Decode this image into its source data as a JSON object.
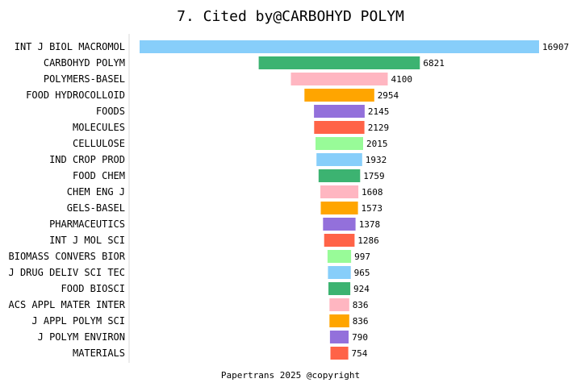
{
  "chart_data": {
    "type": "bar",
    "orientation": "horizontal-funnel",
    "title": "7. Cited by@CARBOHYD POLYM",
    "categories": [
      "INT J BIOL MACROMOL",
      "CARBOHYD POLYM",
      "POLYMERS-BASEL",
      "FOOD HYDROCOLLOID",
      "FOODS",
      "MOLECULES",
      "CELLULOSE",
      "IND CROP PROD",
      "FOOD CHEM",
      "CHEM ENG J",
      "GELS-BASEL",
      "PHARMACEUTICS",
      "INT J MOL SCI",
      "BIOMASS CONVERS BIOR",
      "J DRUG DELIV SCI TEC",
      "FOOD BIOSCI",
      "ACS APPL MATER INTER",
      "J APPL POLYM SCI",
      "J POLYM ENVIRON",
      "MATERIALS"
    ],
    "values": [
      16907,
      6821,
      4100,
      2954,
      2145,
      2129,
      2015,
      1932,
      1759,
      1608,
      1573,
      1378,
      1286,
      997,
      965,
      924,
      836,
      836,
      790,
      754
    ],
    "colors": [
      "#87CEFA",
      "#3CB371",
      "#FFB6C1",
      "#FFA500",
      "#9370DB",
      "#FF6347",
      "#98FB98"
    ],
    "grid": false,
    "legend": "none"
  },
  "footer": "Papertrans 2025 @copyright"
}
